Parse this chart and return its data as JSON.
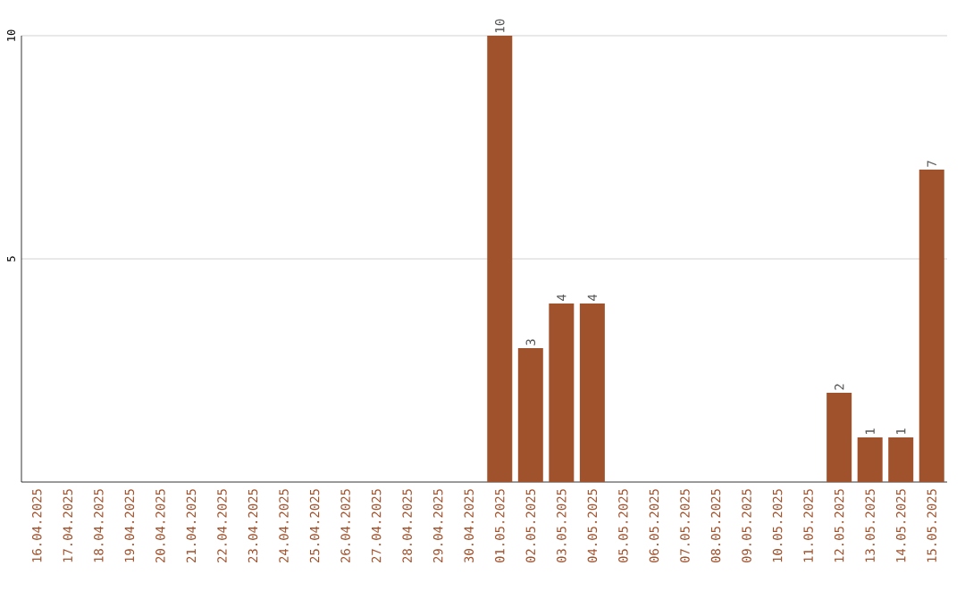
{
  "chart_data": {
    "type": "bar",
    "categories": [
      "16.04.2025",
      "17.04.2025",
      "18.04.2025",
      "19.04.2025",
      "20.04.2025",
      "21.04.2025",
      "22.04.2025",
      "23.04.2025",
      "24.04.2025",
      "25.04.2025",
      "26.04.2025",
      "27.04.2025",
      "28.04.2025",
      "29.04.2025",
      "30.04.2025",
      "01.05.2025",
      "02.05.2025",
      "03.05.2025",
      "04.05.2025",
      "05.05.2025",
      "06.05.2025",
      "07.05.2025",
      "08.05.2025",
      "09.05.2025",
      "10.05.2025",
      "11.05.2025",
      "12.05.2025",
      "13.05.2025",
      "14.05.2025",
      "15.05.2025"
    ],
    "values": [
      0,
      0,
      0,
      0,
      0,
      0,
      0,
      0,
      0,
      0,
      0,
      0,
      0,
      0,
      0,
      10,
      3,
      4,
      4,
      0,
      0,
      0,
      0,
      0,
      0,
      0,
      2,
      1,
      1,
      7
    ],
    "value_labels": [
      null,
      null,
      null,
      null,
      null,
      null,
      null,
      null,
      null,
      null,
      null,
      null,
      null,
      null,
      null,
      "10",
      "3",
      "4",
      "4",
      null,
      null,
      null,
      null,
      null,
      null,
      null,
      "2",
      "1",
      "1",
      "7"
    ],
    "color": "#a0522d",
    "ylim": [
      0,
      10
    ],
    "yticks": [
      5,
      10
    ],
    "grid": "y"
  }
}
